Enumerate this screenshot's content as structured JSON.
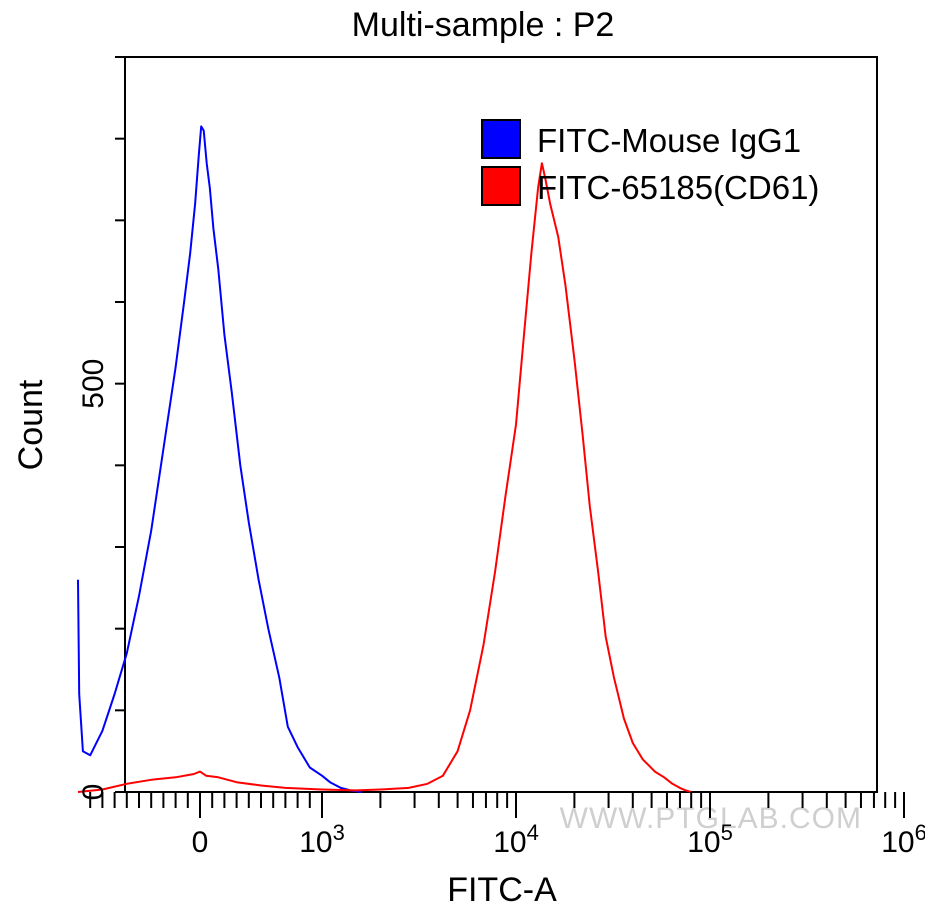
{
  "chart_data": {
    "type": "histogram-overlay",
    "title": "Multi-sample : P2",
    "xlabel": "FITC-A",
    "ylabel": "Count",
    "x_scale": "biexponential",
    "x_tick_labels": [
      {
        "value": 0,
        "label": "0",
        "sup": ""
      },
      {
        "value": 1000,
        "label": "10",
        "sup": "3"
      },
      {
        "value": 10000,
        "label": "10",
        "sup": "4"
      },
      {
        "value": 100000,
        "label": "10",
        "sup": "5"
      },
      {
        "value": 1000000,
        "label": "10",
        "sup": "6"
      }
    ],
    "y_ticks": [
      0,
      100,
      200,
      300,
      400,
      500,
      600,
      700,
      800,
      900
    ],
    "y_tick_labels": [
      {
        "value": 0,
        "label": "0"
      },
      {
        "value": 500,
        "label": "500"
      }
    ],
    "ylim": [
      0,
      900
    ],
    "legend": {
      "placement": "top-right",
      "entries": [
        {
          "name": "FITC-Mouse IgG1",
          "color": "#0000ff"
        },
        {
          "name": "FITC-65185(CD61)",
          "color": "#ff0000"
        }
      ]
    },
    "series": [
      {
        "name": "FITC-Mouse IgG1",
        "color": "#0000ff",
        "points": [
          [
            -1000,
            260
          ],
          [
            -990,
            120
          ],
          [
            -960,
            50
          ],
          [
            -900,
            45
          ],
          [
            -800,
            75
          ],
          [
            -700,
            120
          ],
          [
            -600,
            170
          ],
          [
            -500,
            240
          ],
          [
            -400,
            320
          ],
          [
            -300,
            420
          ],
          [
            -200,
            520
          ],
          [
            -130,
            600
          ],
          [
            -80,
            660
          ],
          [
            -40,
            720
          ],
          [
            -10,
            780
          ],
          [
            10,
            815
          ],
          [
            30,
            810
          ],
          [
            55,
            770
          ],
          [
            80,
            740
          ],
          [
            110,
            690
          ],
          [
            150,
            640
          ],
          [
            200,
            560
          ],
          [
            260,
            490
          ],
          [
            330,
            400
          ],
          [
            400,
            330
          ],
          [
            480,
            260
          ],
          [
            560,
            200
          ],
          [
            650,
            140
          ],
          [
            720,
            80
          ],
          [
            800,
            55
          ],
          [
            900,
            30
          ],
          [
            1000,
            20
          ],
          [
            1100,
            12
          ],
          [
            1250,
            5
          ],
          [
            1400,
            2
          ],
          [
            1600,
            0
          ]
        ]
      },
      {
        "name": "FITC-65185(CD61)",
        "color": "#ff0000",
        "points": [
          [
            -1000,
            0
          ],
          [
            -800,
            3
          ],
          [
            -600,
            10
          ],
          [
            -400,
            15
          ],
          [
            -200,
            18
          ],
          [
            -50,
            22
          ],
          [
            0,
            25
          ],
          [
            50,
            20
          ],
          [
            150,
            18
          ],
          [
            300,
            12
          ],
          [
            500,
            8
          ],
          [
            700,
            5
          ],
          [
            1000,
            3
          ],
          [
            1500,
            2
          ],
          [
            2000,
            3
          ],
          [
            2800,
            5
          ],
          [
            3500,
            10
          ],
          [
            4200,
            20
          ],
          [
            5000,
            50
          ],
          [
            5800,
            100
          ],
          [
            6800,
            180
          ],
          [
            7800,
            270
          ],
          [
            8800,
            360
          ],
          [
            10000,
            450
          ],
          [
            11000,
            560
          ],
          [
            12000,
            660
          ],
          [
            13000,
            740
          ],
          [
            13600,
            770
          ],
          [
            14200,
            750
          ],
          [
            15000,
            720
          ],
          [
            16500,
            680
          ],
          [
            18000,
            620
          ],
          [
            20000,
            530
          ],
          [
            22000,
            440
          ],
          [
            24000,
            350
          ],
          [
            26500,
            270
          ],
          [
            29000,
            190
          ],
          [
            32000,
            140
          ],
          [
            36000,
            90
          ],
          [
            40000,
            60
          ],
          [
            45000,
            40
          ],
          [
            52000,
            25
          ],
          [
            58000,
            18
          ],
          [
            64000,
            10
          ],
          [
            70000,
            5
          ],
          [
            75000,
            2
          ],
          [
            80000,
            0
          ]
        ]
      }
    ],
    "watermark": "WWW.PTGLAB.COM"
  }
}
